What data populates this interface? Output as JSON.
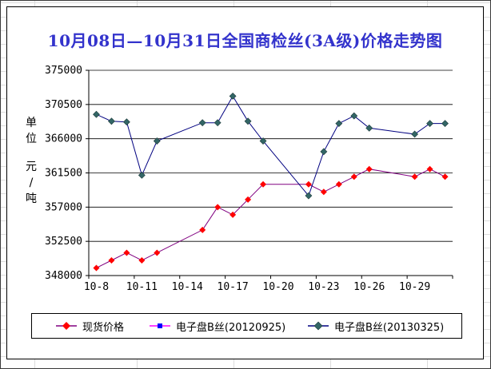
{
  "chart_data": {
    "type": "line",
    "title": "10月08日—10月31日全国商检丝(3A级)价格走势图",
    "title_color": "#3333cc",
    "y_axis_title": "单位 元/吨",
    "y_axis_title_lines": [
      "单位",
      "元/吨"
    ],
    "ylabel_unit": "元/吨",
    "ylim": [
      348000,
      375000
    ],
    "y_step": 4500,
    "y_ticks": [
      375000,
      370500,
      366000,
      361500,
      357000,
      352500,
      348000
    ],
    "x_tick_labels": [
      "10-8",
      "10-11",
      "10-14",
      "10-17",
      "10-20",
      "10-23",
      "10-26",
      "10-29"
    ],
    "categories": [
      "10-8",
      "10-9",
      "10-10",
      "10-11",
      "10-12",
      "10-13",
      "10-14",
      "10-15",
      "10-16",
      "10-17",
      "10-18",
      "10-19",
      "10-20",
      "10-21",
      "10-22",
      "10-23",
      "10-24",
      "10-25",
      "10-26",
      "10-27",
      "10-28",
      "10-29",
      "10-30",
      "10-31"
    ],
    "grid": "horizontal",
    "legend_position": "bottom",
    "series": [
      {
        "name": "现货价格",
        "line_color": "#800080",
        "marker": "diamond",
        "marker_color": "#ff0000",
        "values": [
          349000,
          350000,
          351000,
          350000,
          351000,
          null,
          null,
          354000,
          357000,
          356000,
          358000,
          360000,
          null,
          null,
          360000,
          359000,
          360000,
          361000,
          362000,
          null,
          null,
          361000,
          362000,
          361000
        ]
      },
      {
        "name": "电子盘B丝(20120925)",
        "line_color": "#ff00ff",
        "marker": "square",
        "marker_color": "#0000ff",
        "values": [
          null,
          null,
          null,
          null,
          null,
          null,
          null,
          null,
          null,
          null,
          null,
          null,
          null,
          null,
          null,
          null,
          null,
          null,
          null,
          null,
          null,
          null,
          null,
          null
        ]
      },
      {
        "name": "电子盘B丝(20130325)",
        "line_color": "#000080",
        "marker": "diamond",
        "marker_color": "#336666",
        "values": [
          369200,
          368300,
          368200,
          361200,
          365700,
          null,
          null,
          368100,
          368100,
          371600,
          368300,
          365700,
          null,
          null,
          358500,
          364300,
          368000,
          369000,
          367400,
          null,
          null,
          366600,
          368000,
          368000
        ]
      }
    ]
  }
}
